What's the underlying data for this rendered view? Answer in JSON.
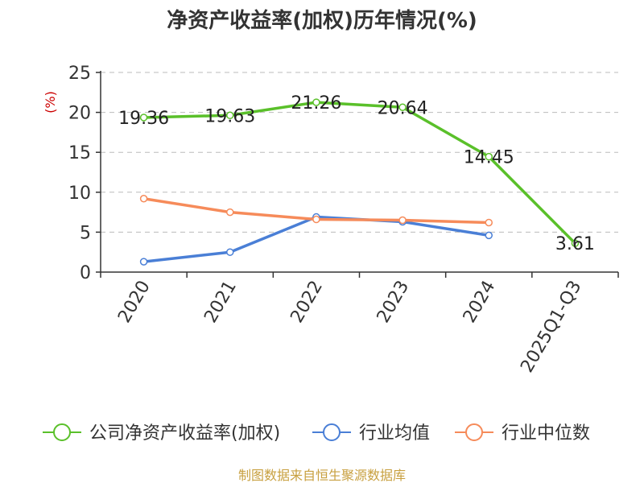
{
  "chart_data": {
    "type": "line",
    "title": "净资产收益率(加权)历年情况(%)",
    "ylabel": "(%)",
    "categories": [
      "2020",
      "2021",
      "2022",
      "2023",
      "2024",
      "2025Q1-Q3"
    ],
    "ylim": [
      0,
      25
    ],
    "yticks": [
      0,
      5,
      10,
      15,
      20,
      25
    ],
    "grid": true,
    "legend_position": "bottom",
    "series": [
      {
        "name": "公司净资产收益率(加权)",
        "color": "#5ac02a",
        "values": [
          19.36,
          19.63,
          21.26,
          20.64,
          14.45,
          3.61
        ],
        "labels": [
          "19.36",
          "19.63",
          "21.26",
          "20.64",
          "14.45",
          "3.61"
        ]
      },
      {
        "name": "行业均值",
        "color": "#4a7fd6",
        "values": [
          1.3,
          2.5,
          6.9,
          6.3,
          4.6,
          null
        ]
      },
      {
        "name": "行业中位数",
        "color": "#f68b5a",
        "values": [
          9.2,
          7.5,
          6.6,
          6.5,
          6.2,
          null
        ]
      }
    ],
    "source": "制图数据来自恒生聚源数据库"
  }
}
